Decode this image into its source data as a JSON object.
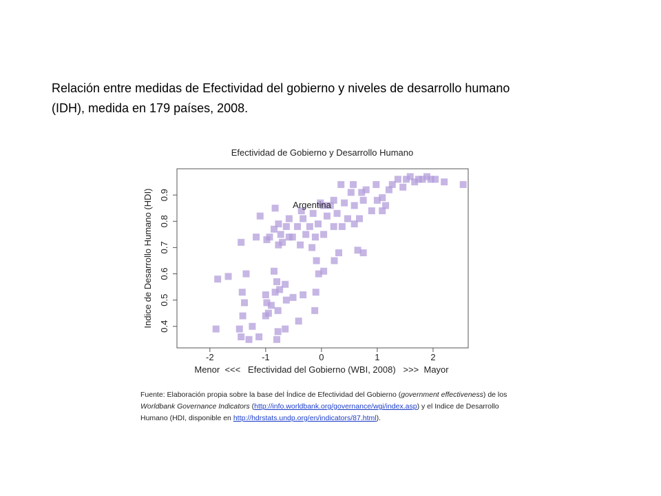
{
  "slide": {
    "title_lines": [
      "Relación entre medidas de Efectividad del gobierno y niveles de desarrollo humano",
      "(IDH), medida en 179 países, 2008."
    ],
    "source_lines": [
      [
        {
          "text": "Fuente: Elaboración propia sobre la base del Índice de Efectividad del Gobierno ("
        },
        {
          "text": "government effectiveness",
          "style": "italic"
        },
        {
          "text": ") de los"
        }
      ],
      [
        {
          "text": "Worldbank Governance Indicators",
          "style": "italic"
        },
        {
          "text": " ("
        },
        {
          "text": "http://info.worldbank.org/governance/wgi/index.asp",
          "style": "link"
        },
        {
          "text": ") y el Indice de Desarrollo"
        }
      ],
      [
        {
          "text": "Humano (HDI, disponible en "
        },
        {
          "text": "http://hdrstats.undp.org/en/indicators/87.html",
          "style": "link"
        },
        {
          "text": ")."
        }
      ]
    ]
  },
  "chart_data": {
    "type": "scatter",
    "title": "Efectividad de Gobierno y Desarrollo Humano",
    "xlabel": "Menor  <<<   Efectividad del Gobierno (WBI, 2008)   >>>  Mayor",
    "ylabel": "Indice de Desarrollo Humano (HDI)",
    "annotation": "Argentina",
    "color": "#b39ddb",
    "xlim": [
      -2.59,
      2.63
    ],
    "ylim": [
      0.318,
      1.0
    ],
    "xticks": [
      -2,
      -1,
      0,
      1,
      2
    ],
    "yticks": [
      0.4,
      0.5,
      0.6,
      0.7,
      0.8,
      0.9
    ],
    "x": [
      -1.89,
      -1.86,
      -1.67,
      -1.44,
      -1.35,
      -1.42,
      -1.38,
      -1.41,
      -1.47,
      -1.44,
      -1.3,
      -1.24,
      -1.12,
      -1.17,
      -1.1,
      -1.0,
      -0.98,
      -1.0,
      -0.95,
      -0.9,
      -0.85,
      -0.8,
      -0.75,
      -0.83,
      -0.78,
      -0.8,
      -0.65,
      -0.78,
      -0.63,
      -0.65,
      -0.51,
      -0.41,
      -0.33,
      -0.12,
      -0.1,
      -0.09,
      -0.05,
      0.04,
      0.23,
      0.31,
      0.65,
      0.75,
      -0.98,
      -0.93,
      -0.85,
      -0.77,
      -0.73,
      -0.7,
      -0.83,
      -0.63,
      -0.58,
      -0.52,
      -0.43,
      -0.38,
      -0.33,
      -0.28,
      -0.21,
      -0.15,
      -0.11,
      -0.06,
      -0.02,
      0.04,
      0.1,
      0.16,
      0.22,
      0.28,
      0.35,
      0.41,
      0.47,
      0.53,
      0.59,
      0.68,
      0.75,
      0.8,
      0.9,
      0.98,
      1.09,
      1.15,
      1.21,
      1.27,
      1.37,
      1.46,
      1.52,
      1.59,
      1.67,
      1.74,
      1.81,
      1.89,
      1.96,
      2.04,
      2.2,
      2.54,
      0.57,
      0.72,
      1.0,
      1.09,
      0.22,
      0.04,
      -0.17,
      -0.58,
      -0.77,
      -0.36,
      0.37,
      0.59
    ],
    "values": [
      0.39,
      0.58,
      0.59,
      0.72,
      0.6,
      0.53,
      0.49,
      0.44,
      0.39,
      0.36,
      0.35,
      0.4,
      0.36,
      0.74,
      0.82,
      0.52,
      0.49,
      0.44,
      0.45,
      0.48,
      0.61,
      0.57,
      0.54,
      0.53,
      0.38,
      0.35,
      0.39,
      0.46,
      0.5,
      0.56,
      0.51,
      0.42,
      0.52,
      0.46,
      0.53,
      0.65,
      0.6,
      0.61,
      0.65,
      0.68,
      0.69,
      0.68,
      0.73,
      0.74,
      0.77,
      0.79,
      0.75,
      0.72,
      0.85,
      0.78,
      0.81,
      0.74,
      0.78,
      0.71,
      0.81,
      0.75,
      0.78,
      0.83,
      0.74,
      0.79,
      0.87,
      0.75,
      0.82,
      0.86,
      0.78,
      0.83,
      0.94,
      0.87,
      0.81,
      0.91,
      0.86,
      0.81,
      0.88,
      0.92,
      0.84,
      0.94,
      0.89,
      0.86,
      0.92,
      0.94,
      0.96,
      0.93,
      0.96,
      0.97,
      0.95,
      0.96,
      0.96,
      0.97,
      0.96,
      0.96,
      0.95,
      0.94,
      0.94,
      0.91,
      0.88,
      0.84,
      0.88,
      0.86,
      0.7,
      0.74,
      0.71,
      0.84,
      0.78,
      0.79
    ]
  }
}
